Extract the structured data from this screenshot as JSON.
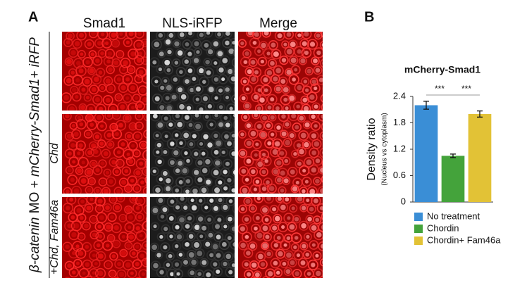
{
  "panel_a": {
    "label": "A",
    "columns": [
      "Smad1",
      "NLS-iRFP",
      "Merge"
    ],
    "side_label": [
      "β-catenin",
      " MO + ",
      "mCherry-Smad1+ iRFP"
    ],
    "rows": [
      "Chd",
      "+Chd, Fam46a"
    ]
  },
  "chart_data": {
    "type": "bar",
    "panel_label": "B",
    "title": "mCherry-Smad1",
    "ylabel": "Density ratio",
    "ylabel_sub": "(Nucleus vs cytoplasm)",
    "categories": [
      "No treatment",
      "Chordin",
      "Chordin+ Fam46a"
    ],
    "values": [
      2.2,
      1.05,
      2.0
    ],
    "errors": [
      0.09,
      0.04,
      0.07
    ],
    "colors": [
      "#3a8ed6",
      "#44a33b",
      "#e2c236"
    ],
    "ylim": [
      0,
      2.4
    ],
    "yticks": [
      0,
      0.6,
      1.2,
      1.8,
      2.4
    ],
    "annotations": [
      "***",
      "***"
    ]
  }
}
